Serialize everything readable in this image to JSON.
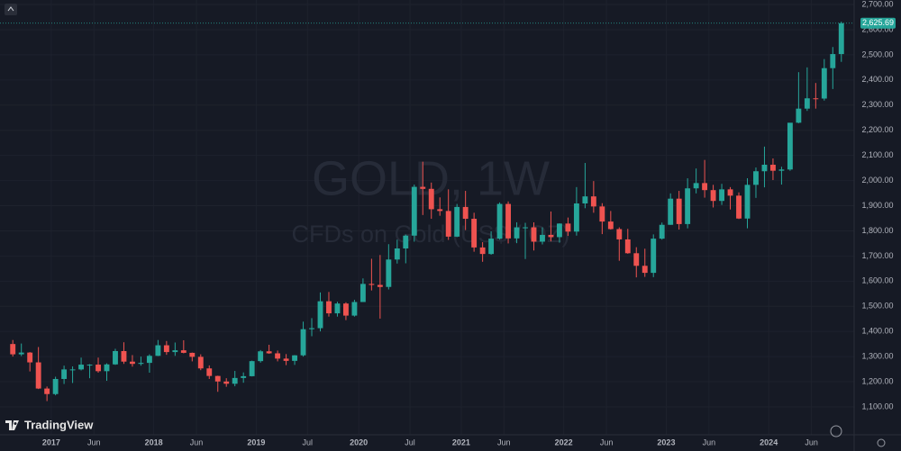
{
  "chart_data": {
    "type": "candlestick",
    "watermark_title": "GOLD, 1W",
    "watermark_subtitle": "CFDs on Gold (US$ / OZ)",
    "brand": "TradingView",
    "x": [
      "2016-08",
      "2016-09",
      "2016-10",
      "2016-11",
      "2016-12",
      "2017-01",
      "2017-02",
      "2017-03",
      "2017-04",
      "2017-05",
      "2017-06",
      "2017-07",
      "2017-08",
      "2017-09",
      "2017-10",
      "2017-11",
      "2017-12",
      "2018-01",
      "2018-02",
      "2018-03",
      "2018-04",
      "2018-05",
      "2018-06",
      "2018-07",
      "2018-08",
      "2018-09",
      "2018-10",
      "2018-11",
      "2018-12",
      "2019-01",
      "2019-02",
      "2019-03",
      "2019-04",
      "2019-05",
      "2019-06",
      "2019-07",
      "2019-08",
      "2019-09",
      "2019-10",
      "2019-11",
      "2019-12",
      "2020-01",
      "2020-02",
      "2020-03",
      "2020-04",
      "2020-05",
      "2020-06",
      "2020-07",
      "2020-08",
      "2020-09",
      "2020-10",
      "2020-11",
      "2020-12",
      "2021-01",
      "2021-02",
      "2021-03",
      "2021-04",
      "2021-05",
      "2021-06",
      "2021-07",
      "2021-08",
      "2021-09",
      "2021-10",
      "2021-11",
      "2021-12",
      "2022-01",
      "2022-02",
      "2022-03",
      "2022-04",
      "2022-05",
      "2022-06",
      "2022-07",
      "2022-08",
      "2022-09",
      "2022-10",
      "2022-11",
      "2022-12",
      "2023-01",
      "2023-02",
      "2023-03",
      "2023-04",
      "2023-05",
      "2023-06",
      "2023-07",
      "2023-08",
      "2023-09",
      "2023-10",
      "2023-11",
      "2023-12",
      "2024-01",
      "2024-02",
      "2024-03",
      "2024-04",
      "2024-05",
      "2024-06",
      "2024-07",
      "2024-08",
      "2024-09"
    ],
    "open": [
      1350,
      1309,
      1316,
      1277,
      1173,
      1151,
      1211,
      1249,
      1249,
      1268,
      1268,
      1242,
      1269,
      1322,
      1280,
      1271,
      1275,
      1303,
      1345,
      1318,
      1325,
      1315,
      1299,
      1253,
      1223,
      1201,
      1192,
      1215,
      1222,
      1282,
      1321,
      1313,
      1292,
      1283,
      1305,
      1409,
      1413,
      1520,
      1472,
      1511,
      1463,
      1517,
      1589,
      1585,
      1577,
      1686,
      1730,
      1781,
      1975,
      1967,
      1886,
      1879,
      1777,
      1895,
      1848,
      1734,
      1708,
      1769,
      1907,
      1770,
      1814,
      1814,
      1757,
      1784,
      1775,
      1829,
      1797,
      1909,
      1937,
      1897,
      1837,
      1807,
      1766,
      1711,
      1661,
      1633,
      1769,
      1824,
      1928,
      1827,
      1969,
      1990,
      1962,
      1919,
      1965,
      1940,
      1849,
      1983,
      2037,
      2063,
      2039,
      2044,
      2230,
      2286,
      2327,
      2326,
      2447,
      2503
    ],
    "high": [
      1366,
      1352,
      1318,
      1338,
      1181,
      1220,
      1264,
      1261,
      1296,
      1270,
      1296,
      1273,
      1331,
      1357,
      1306,
      1300,
      1309,
      1366,
      1362,
      1356,
      1365,
      1316,
      1309,
      1265,
      1224,
      1214,
      1243,
      1237,
      1284,
      1326,
      1347,
      1324,
      1310,
      1306,
      1439,
      1453,
      1555,
      1557,
      1518,
      1516,
      1526,
      1611,
      1689,
      1704,
      1747,
      1765,
      1785,
      1984,
      2075,
      1992,
      1933,
      1965,
      1907,
      1959,
      1872,
      1755,
      1798,
      1913,
      1917,
      1834,
      1832,
      1834,
      1814,
      1877,
      1830,
      1853,
      1974,
      2070,
      1998,
      1910,
      1879,
      1814,
      1808,
      1735,
      1729,
      1786,
      1833,
      1949,
      1959,
      2009,
      2048,
      2082,
      1983,
      1987,
      1974,
      1953,
      2009,
      2052,
      2135,
      2088,
      2055,
      2223,
      2431,
      2450,
      2388,
      2483,
      2531,
      2632
    ],
    "low": [
      1300,
      1302,
      1241,
      1171,
      1123,
      1146,
      1191,
      1195,
      1245,
      1214,
      1236,
      1204,
      1267,
      1271,
      1260,
      1264,
      1236,
      1302,
      1307,
      1303,
      1313,
      1281,
      1246,
      1211,
      1160,
      1180,
      1182,
      1196,
      1221,
      1276,
      1311,
      1281,
      1266,
      1267,
      1300,
      1381,
      1400,
      1459,
      1459,
      1445,
      1459,
      1517,
      1563,
      1451,
      1567,
      1670,
      1671,
      1757,
      1863,
      1848,
      1860,
      1764,
      1775,
      1803,
      1717,
      1677,
      1705,
      1765,
      1750,
      1751,
      1688,
      1722,
      1746,
      1758,
      1753,
      1780,
      1781,
      1890,
      1872,
      1787,
      1805,
      1681,
      1709,
      1615,
      1617,
      1616,
      1765,
      1824,
      1805,
      1810,
      1949,
      1932,
      1893,
      1903,
      1885,
      1847,
      1810,
      1931,
      1973,
      2002,
      1984,
      2039,
      2228,
      2277,
      2286,
      2318,
      2364,
      2472
    ],
    "close": [
      1309,
      1316,
      1277,
      1173,
      1151,
      1211,
      1249,
      1249,
      1268,
      1268,
      1242,
      1269,
      1322,
      1280,
      1271,
      1275,
      1303,
      1345,
      1318,
      1325,
      1315,
      1299,
      1253,
      1223,
      1201,
      1192,
      1215,
      1222,
      1282,
      1321,
      1313,
      1292,
      1283,
      1305,
      1409,
      1413,
      1520,
      1472,
      1511,
      1463,
      1517,
      1589,
      1585,
      1577,
      1686,
      1730,
      1781,
      1975,
      1967,
      1886,
      1879,
      1777,
      1895,
      1848,
      1734,
      1708,
      1769,
      1907,
      1770,
      1814,
      1814,
      1757,
      1784,
      1775,
      1829,
      1797,
      1909,
      1937,
      1897,
      1837,
      1807,
      1766,
      1711,
      1661,
      1633,
      1769,
      1824,
      1928,
      1827,
      1969,
      1990,
      1962,
      1919,
      1965,
      1940,
      1849,
      1983,
      2037,
      2063,
      2039,
      2044,
      2230,
      2286,
      2327,
      2326,
      2447,
      2503,
      2625.69
    ],
    "up_color": "#26a69a",
    "down_color": "#ef5350",
    "last_price": {
      "value": 2625.69,
      "label": "2,625.69"
    },
    "xlim": [
      "2016-07",
      "2024-11"
    ],
    "xticks": [
      {
        "value": "2017-01",
        "label": "2017"
      },
      {
        "value": "2017-06",
        "label": "Jun"
      },
      {
        "value": "2018-01",
        "label": "2018"
      },
      {
        "value": "2018-06",
        "label": "Jun"
      },
      {
        "value": "2019-01",
        "label": "2019"
      },
      {
        "value": "2019-07",
        "label": "Jul"
      },
      {
        "value": "2020-01",
        "label": "2020"
      },
      {
        "value": "2020-07",
        "label": "Jul"
      },
      {
        "value": "2021-01",
        "label": "2021"
      },
      {
        "value": "2021-06",
        "label": "Jun"
      },
      {
        "value": "2022-01",
        "label": "2022"
      },
      {
        "value": "2022-06",
        "label": "Jun"
      },
      {
        "value": "2023-01",
        "label": "2023"
      },
      {
        "value": "2023-06",
        "label": "Jun"
      },
      {
        "value": "2024-01",
        "label": "2024"
      },
      {
        "value": "2024-06",
        "label": "Jun"
      }
    ],
    "ylim": [
      989,
      2718
    ],
    "yticks": [
      {
        "value": 1100,
        "label": "1,100.00"
      },
      {
        "value": 1200,
        "label": "1,200.00"
      },
      {
        "value": 1300,
        "label": "1,300.00"
      },
      {
        "value": 1400,
        "label": "1,400.00"
      },
      {
        "value": 1500,
        "label": "1,500.00"
      },
      {
        "value": 1600,
        "label": "1,600.00"
      },
      {
        "value": 1700,
        "label": "1,700.00"
      },
      {
        "value": 1800,
        "label": "1,800.00"
      },
      {
        "value": 1900,
        "label": "1,900.00"
      },
      {
        "value": 2000,
        "label": "2,000.00"
      },
      {
        "value": 2100,
        "label": "2,100.00"
      },
      {
        "value": 2200,
        "label": "2,200.00"
      },
      {
        "value": 2300,
        "label": "2,300.00"
      },
      {
        "value": 2400,
        "label": "2,400.00"
      },
      {
        "value": 2500,
        "label": "2,500.00"
      },
      {
        "value": 2600,
        "label": "2,600.00"
      },
      {
        "value": 2700,
        "label": "2,700.00"
      }
    ],
    "grid": true
  }
}
